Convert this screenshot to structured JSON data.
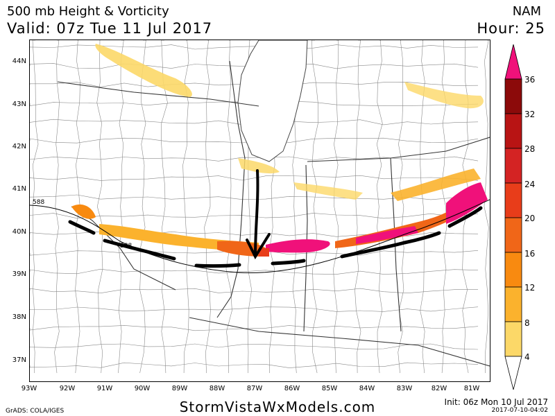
{
  "header": {
    "title": "500 mb Height & Vorticity",
    "valid": "Valid: 07z Tue 11 Jul 2017",
    "model": "NAM",
    "hour": "Hour: 25"
  },
  "axes": {
    "lat_labels": [
      "44N",
      "43N",
      "42N",
      "41N",
      "40N",
      "39N",
      "38N",
      "37N"
    ],
    "lon_labels": [
      "93W",
      "92W",
      "91W",
      "90W",
      "89W",
      "88W",
      "87W",
      "86W",
      "85W",
      "84W",
      "83W",
      "82W",
      "81W"
    ]
  },
  "contour_labels": [
    "588",
    "588"
  ],
  "colorbar": {
    "labels": [
      "36",
      "32",
      "28",
      "24",
      "20",
      "16",
      "12",
      "8",
      "4"
    ],
    "colors": [
      "#f0117a",
      "#8c0a0a",
      "#b81414",
      "#d42323",
      "#e83d1a",
      "#f06618",
      "#f88a10",
      "#fbb22d",
      "#fcd868",
      "#fff0a0"
    ]
  },
  "footer": {
    "site": "StormVistaWxModels.com",
    "credit": "GrADS: COLA/IGES",
    "init": "Init: 06z Mon 10 Jul 2017",
    "stamp": "2017-07-10-04:02"
  }
}
